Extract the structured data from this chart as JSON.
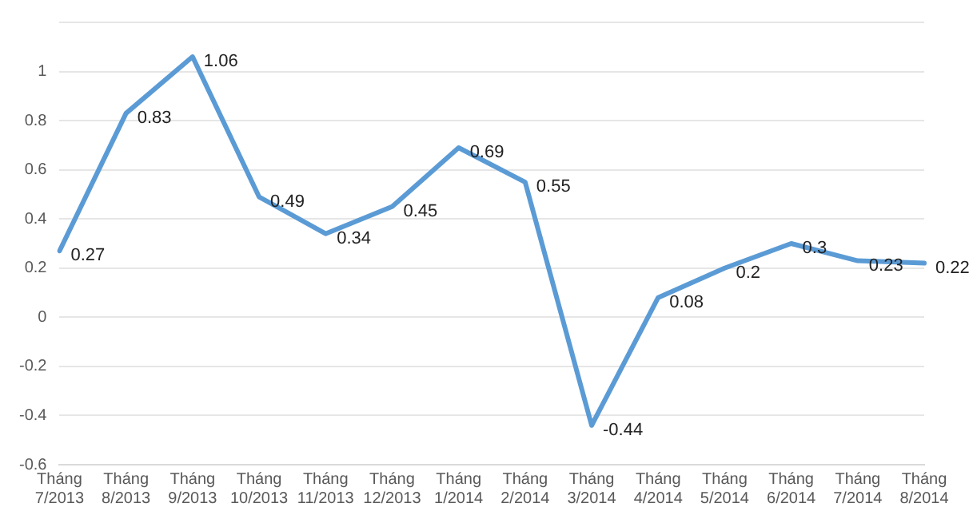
{
  "chart_data": {
    "type": "line",
    "categories": [
      "Tháng 7/2013",
      "Tháng 8/2013",
      "Tháng 9/2013",
      "Tháng 10/2013",
      "Tháng 11/2013",
      "Tháng 12/2013",
      "Tháng 1/2014",
      "Tháng 2/2014",
      "Tháng 3/2014",
      "Tháng 4/2014",
      "Tháng 5/2014",
      "Tháng 6/2014",
      "Tháng 7/2014",
      "Tháng 8/2014"
    ],
    "series": [
      {
        "color": "#5b9bd5",
        "values": [
          0.27,
          0.83,
          1.06,
          0.49,
          0.34,
          0.45,
          0.69,
          0.55,
          -0.44,
          0.08,
          0.2,
          0.3,
          0.23,
          0.22
        ]
      }
    ],
    "ylim": [
      -0.6,
      1.2
    ],
    "yticks": [
      -0.6,
      -0.4,
      -0.2,
      0,
      0.2,
      0.4,
      0.6,
      0.8,
      1,
      {
        "value": 1.2,
        "label": null
      }
    ],
    "grid": "y",
    "data_labels": true,
    "legend": false,
    "marker": "none",
    "line_style": "solid"
  }
}
